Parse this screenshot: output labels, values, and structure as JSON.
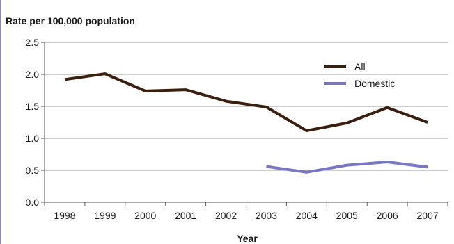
{
  "chart_data": {
    "type": "line",
    "title": "",
    "ylabel": "Rate per 100,000 population",
    "xlabel": "Year",
    "categories": [
      "1998",
      "1999",
      "2000",
      "2001",
      "2002",
      "2003",
      "2004",
      "2005",
      "2006",
      "2007"
    ],
    "ylim": [
      0,
      2.5
    ],
    "yticks": [
      "0.0",
      "0.5",
      "1.0",
      "1.5",
      "2.0",
      "2.5"
    ],
    "grid": true,
    "legend_position": "top-right",
    "series": [
      {
        "name": "All",
        "color": "#3b1f0e",
        "values": [
          1.92,
          2.01,
          1.74,
          1.76,
          1.58,
          1.49,
          1.12,
          1.24,
          1.48,
          1.25
        ]
      },
      {
        "name": "Domestic",
        "color": "#7777c4",
        "values": [
          null,
          null,
          null,
          null,
          null,
          0.56,
          0.47,
          0.58,
          0.63,
          0.55
        ]
      }
    ]
  }
}
